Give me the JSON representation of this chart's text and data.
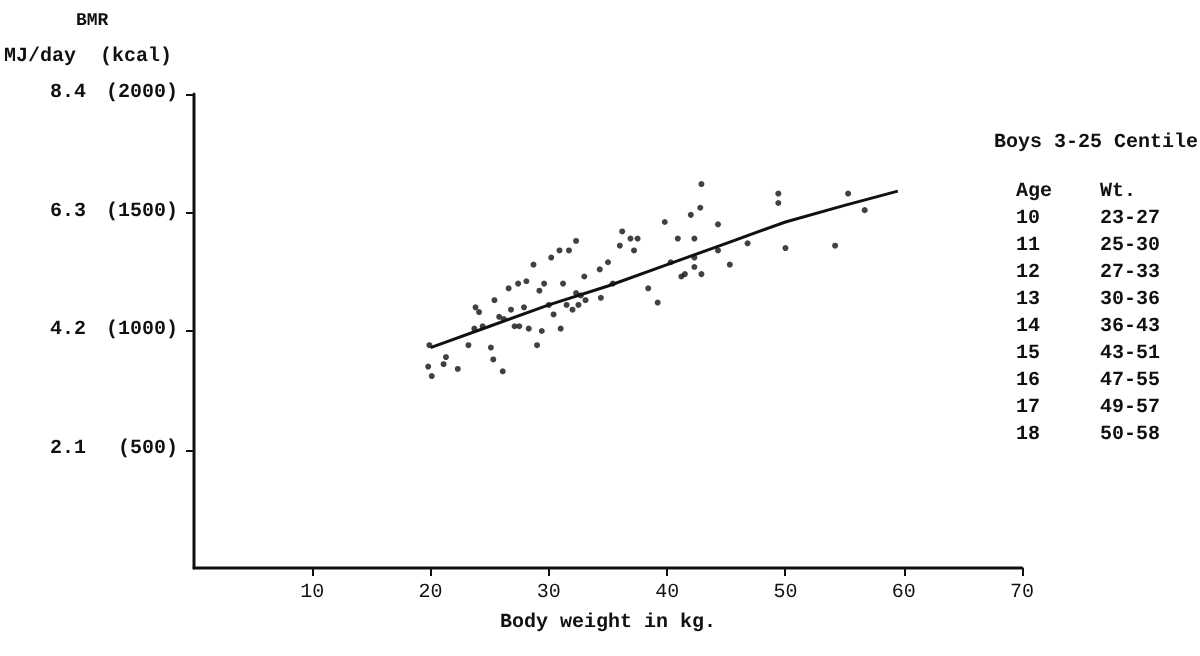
{
  "chart_data": {
    "type": "scatter",
    "xlabel": "Body weight in kg.",
    "ylabel": "MJ/day",
    "y2label": "(kcal)",
    "annotations": [
      "BMR",
      "Boys 3-25 Centile",
      "Age    Wt.",
      "10     23-27",
      "11     25-30",
      "12     27-33",
      "13     30-36",
      "14     36-43",
      "15     43-51",
      "16     47-55",
      "17     49-57",
      "18     50-58"
    ],
    "xlim": [
      0,
      70
    ],
    "xticks": [
      10,
      20,
      30,
      40,
      50,
      60,
      70
    ],
    "ylim": [
      0,
      8.4
    ],
    "yticks": [
      2.1,
      4.2,
      6.3,
      8.4
    ],
    "y2lim": [
      0,
      2000
    ],
    "y2ticks": [
      {
        "value": 500,
        "label": "(500)"
      },
      {
        "value": 1000,
        "label": "(1000)"
      },
      {
        "value": 1500,
        "label": "(1500)"
      },
      {
        "value": 2000,
        "label": "(2000)"
      }
    ],
    "grid": false,
    "marker": "circle",
    "series": [
      {
        "color": "#111111",
        "axis": "y2",
        "x": [
          19.9,
          19.8,
          20.1,
          21.1,
          21.3,
          22.3,
          23.2,
          23.7,
          23.8,
          24.1,
          24.4,
          25.1,
          25.3,
          26.1,
          25.4,
          25.8,
          26.2,
          26.6,
          26.8,
          27.1,
          27.4,
          27.5,
          27.9,
          28.1,
          28.3,
          28.7,
          29.0,
          29.2,
          29.4,
          29.6,
          30.0,
          30.2,
          30.4,
          30.9,
          31.0,
          31.2,
          31.5,
          31.7,
          32.0,
          32.3,
          32.3,
          32.5,
          32.7,
          33.0,
          33.1,
          34.3,
          34.4,
          35.0,
          35.4,
          36.0,
          36.2,
          36.9,
          37.2,
          37.5,
          38.4,
          39.2,
          39.8,
          40.3,
          40.9,
          41.2,
          41.5,
          42.0,
          42.3,
          42.3,
          42.3,
          42.8,
          42.9,
          42.9,
          44.3,
          44.3,
          45.3,
          46.8,
          49.4,
          49.4,
          50.0,
          54.2,
          55.3,
          56.7
        ],
        "values": [
          940,
          850,
          810,
          860,
          890,
          840,
          940,
          1010,
          1100,
          1080,
          1020,
          930,
          880,
          830,
          1130,
          1060,
          1050,
          1180,
          1090,
          1020,
          1200,
          1020,
          1100,
          1210,
          1010,
          1280,
          940,
          1170,
          1000,
          1200,
          1110,
          1310,
          1070,
          1340,
          1010,
          1200,
          1110,
          1340,
          1090,
          1380,
          1160,
          1110,
          1150,
          1230,
          1130,
          1260,
          1140,
          1290,
          1200,
          1360,
          1420,
          1390,
          1340,
          1390,
          1180,
          1120,
          1460,
          1290,
          1390,
          1230,
          1240,
          1490,
          1310,
          1270,
          1390,
          1520,
          1240,
          1620,
          1450,
          1340,
          1280,
          1370,
          1580,
          1540,
          1350,
          1360,
          1580,
          1510
        ]
      },
      {
        "type": "line",
        "color": "#111111",
        "axis": "y2",
        "marker": "none",
        "line_style": "solid",
        "x": [
          20,
          25,
          30,
          35,
          40,
          45,
          50,
          55,
          59.5
        ],
        "values": [
          930,
          1020,
          1110,
          1190,
          1280,
          1370,
          1460,
          1530,
          1590
        ]
      }
    ]
  }
}
